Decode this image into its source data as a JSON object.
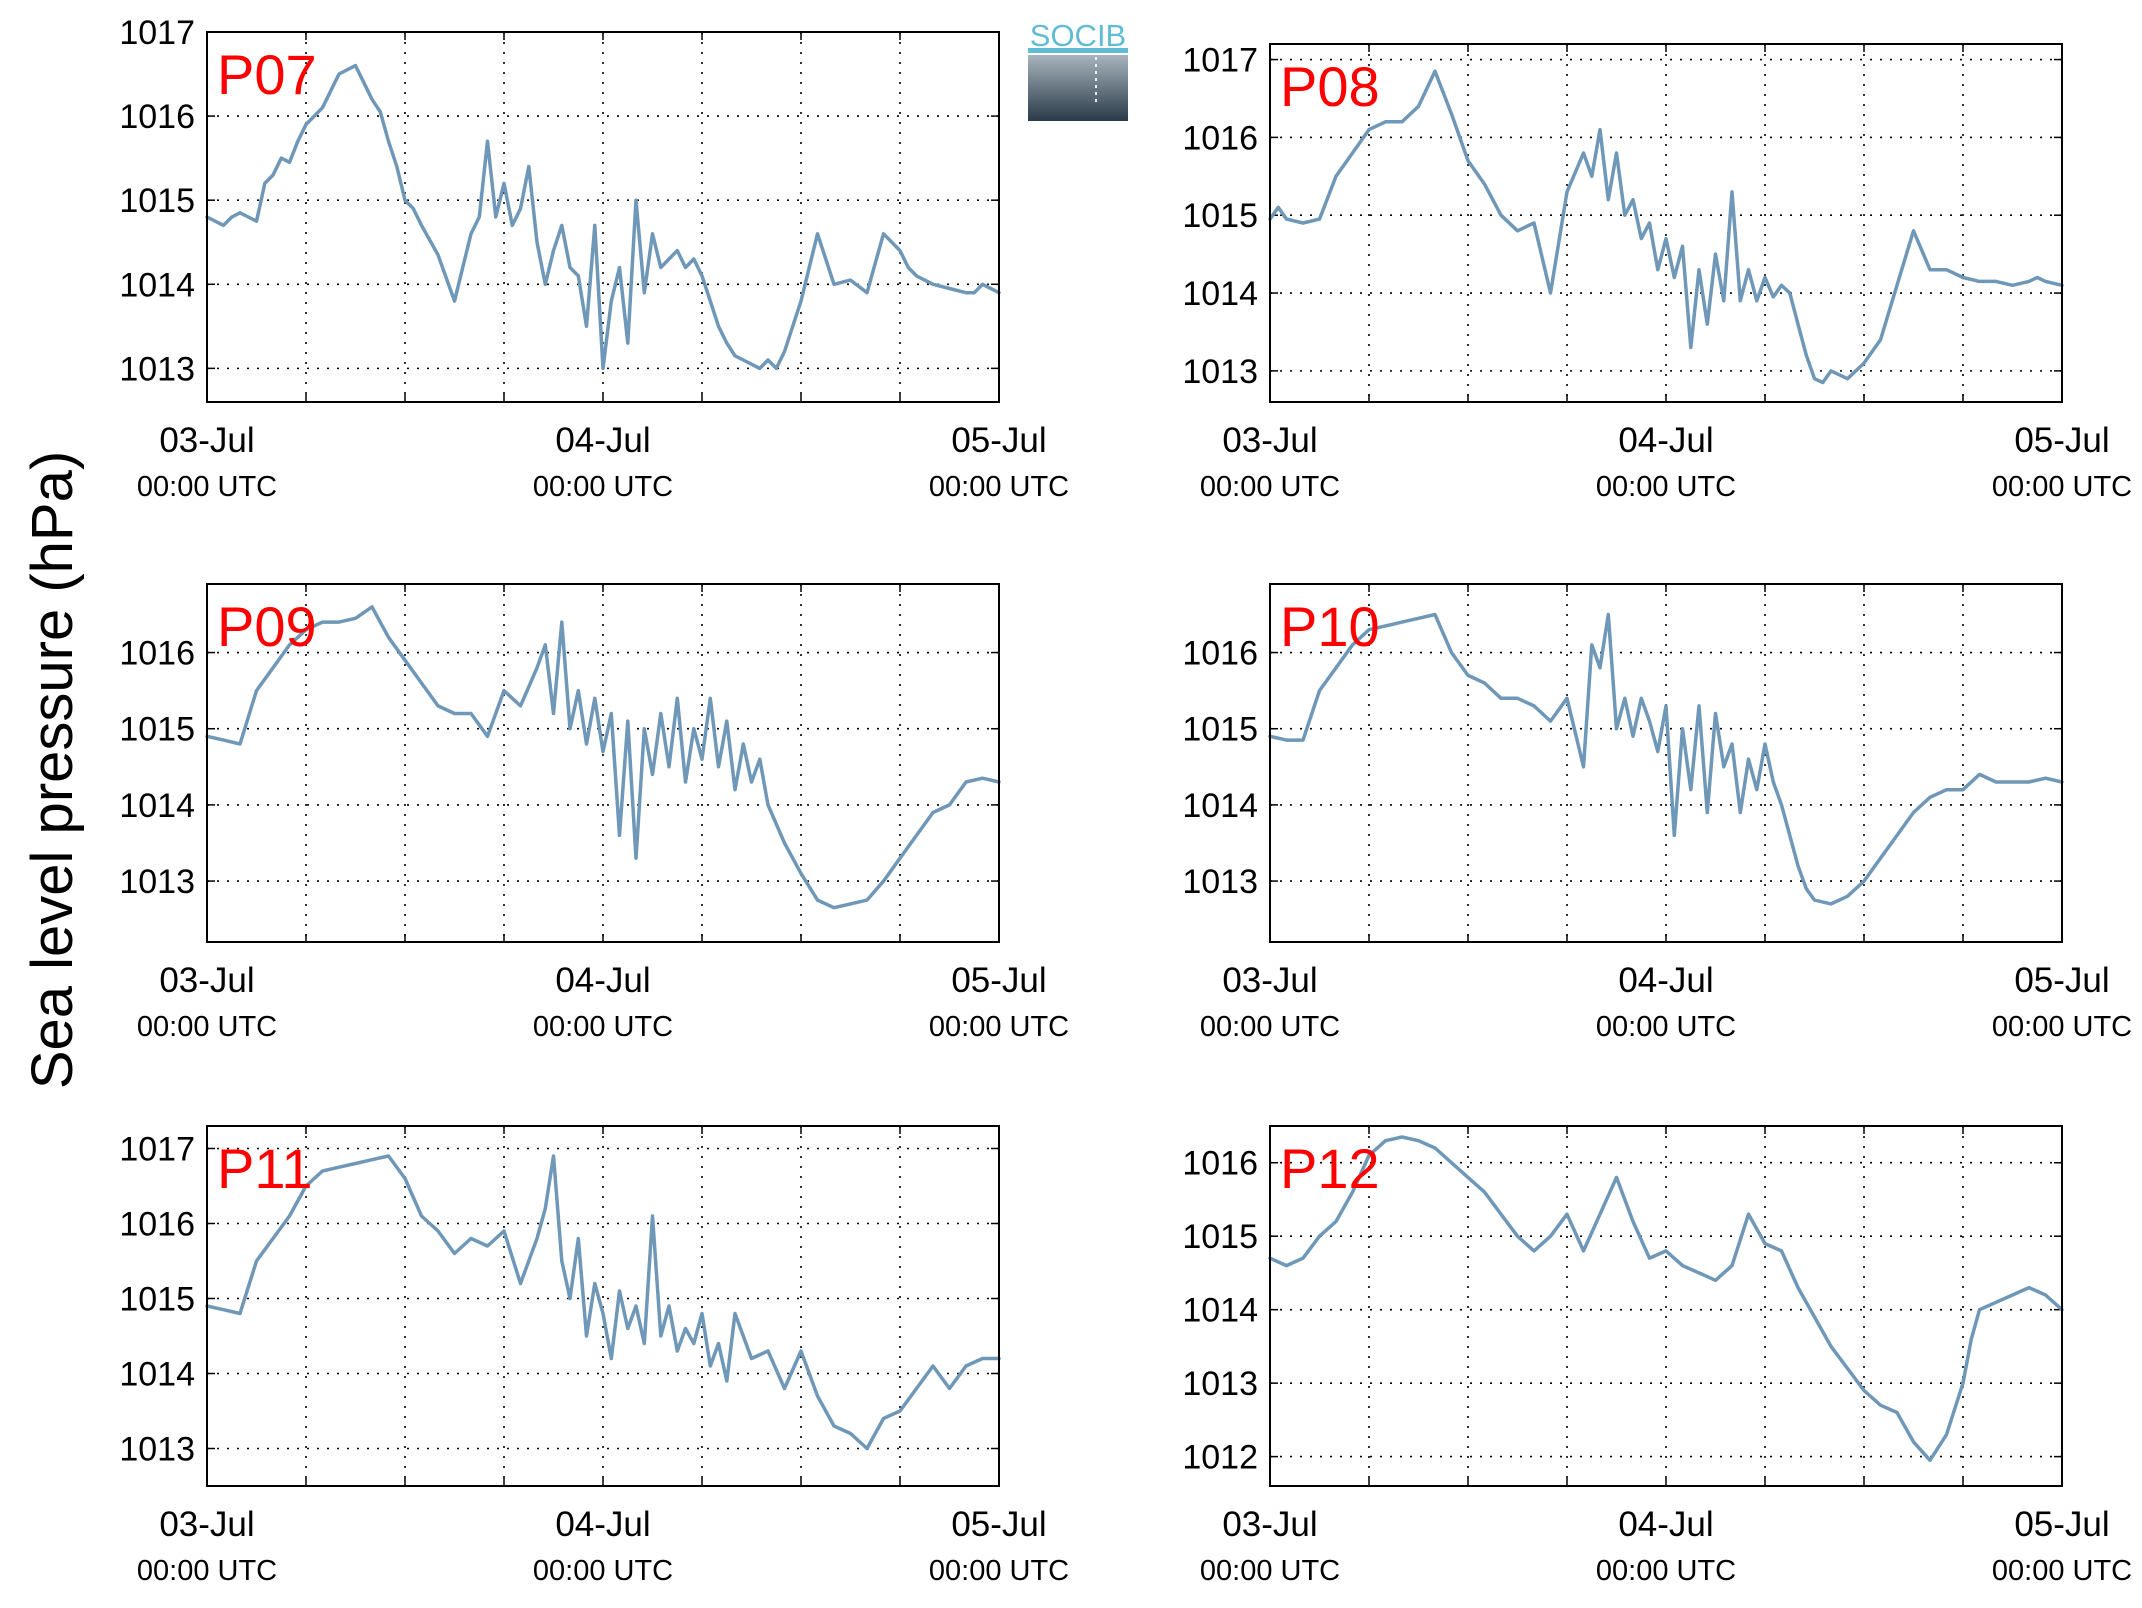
{
  "figure": {
    "ylabel": "Sea level pressure (hPa)",
    "logo_text": "SOCIB",
    "line_color": "#6f97b7",
    "station_label_color": "#ff0000",
    "grid": true,
    "grid_style": "dotted"
  },
  "chart_data": [
    {
      "type": "line",
      "title": "P07",
      "x_ticks": [
        {
          "major": "03-Jul",
          "minor": "00:00 UTC"
        },
        {
          "major": "04-Jul",
          "minor": "00:00 UTC"
        },
        {
          "major": "05-Jul",
          "minor": "00:00 UTC"
        }
      ],
      "xlim_hours": [
        0,
        48
      ],
      "ylim": [
        1012.6,
        1017.0
      ],
      "yticks": [
        1013,
        1014,
        1015,
        1016,
        1017
      ],
      "x_hours": [
        0,
        1,
        1.5,
        2,
        2.5,
        3,
        3.5,
        4,
        4.5,
        5,
        5.5,
        6,
        7,
        8,
        9,
        10,
        10.5,
        11,
        11.5,
        12,
        12.5,
        13,
        14,
        15,
        16,
        16.5,
        17,
        17.5,
        18,
        18.5,
        19,
        19.5,
        20,
        20.5,
        21,
        21.5,
        22,
        22.5,
        23,
        23.5,
        24,
        24.5,
        25,
        25.5,
        26,
        26.5,
        27,
        27.5,
        28,
        28.5,
        29,
        29.5,
        30,
        30.5,
        31,
        31.5,
        32,
        32.5,
        33,
        33.5,
        34,
        34.5,
        35,
        36,
        37,
        38,
        39,
        40,
        41,
        42,
        42.5,
        43,
        44,
        45,
        46,
        46.5,
        47,
        48
      ],
      "values": [
        1014.8,
        1014.7,
        1014.8,
        1014.85,
        1014.8,
        1014.75,
        1015.2,
        1015.3,
        1015.5,
        1015.45,
        1015.7,
        1015.9,
        1016.1,
        1016.5,
        1016.6,
        1016.2,
        1016.05,
        1015.7,
        1015.4,
        1015.0,
        1014.9,
        1014.7,
        1014.35,
        1013.8,
        1014.6,
        1014.8,
        1015.7,
        1014.8,
        1015.2,
        1014.7,
        1014.9,
        1015.4,
        1014.5,
        1014.0,
        1014.4,
        1014.7,
        1014.2,
        1014.1,
        1013.5,
        1014.7,
        1013.0,
        1013.8,
        1014.2,
        1013.3,
        1015.0,
        1013.9,
        1014.6,
        1014.2,
        1014.3,
        1014.4,
        1014.2,
        1014.3,
        1014.1,
        1013.8,
        1013.5,
        1013.3,
        1013.15,
        1013.1,
        1013.05,
        1013.0,
        1013.1,
        1013.0,
        1013.2,
        1013.8,
        1014.6,
        1014.0,
        1014.05,
        1013.9,
        1014.6,
        1014.4,
        1014.2,
        1014.1,
        1014.0,
        1013.95,
        1013.9,
        1013.9,
        1014.0,
        1013.9
      ]
    },
    {
      "type": "line",
      "title": "P08",
      "x_ticks": [
        {
          "major": "03-Jul",
          "minor": "00:00 UTC"
        },
        {
          "major": "04-Jul",
          "minor": "00:00 UTC"
        },
        {
          "major": "05-Jul",
          "minor": "00:00 UTC"
        }
      ],
      "xlim_hours": [
        0,
        48
      ],
      "ylim": [
        1012.6,
        1017.2
      ],
      "yticks": [
        1013,
        1014,
        1015,
        1016,
        1017
      ],
      "x_hours": [
        0,
        0.5,
        1,
        2,
        3,
        4,
        5,
        6,
        7,
        8,
        9,
        10,
        11,
        11.5,
        12,
        13,
        14,
        15,
        16,
        17,
        18,
        19,
        19.5,
        20,
        20.5,
        21,
        21.5,
        22,
        22.5,
        23,
        23.5,
        24,
        24.5,
        25,
        25.5,
        26,
        26.5,
        27,
        27.5,
        28,
        28.5,
        29,
        29.5,
        30,
        30.5,
        31,
        31.5,
        32,
        32.5,
        33,
        33.5,
        34,
        35,
        36,
        37,
        38,
        39,
        40,
        41,
        42,
        43,
        44,
        45,
        46,
        46.5,
        47,
        48
      ],
      "values": [
        1014.95,
        1015.1,
        1014.95,
        1014.9,
        1014.95,
        1015.5,
        1015.8,
        1016.1,
        1016.2,
        1016.2,
        1016.4,
        1016.85,
        1016.3,
        1016.0,
        1015.7,
        1015.4,
        1015.0,
        1014.8,
        1014.9,
        1014.0,
        1015.3,
        1015.8,
        1015.5,
        1016.1,
        1015.2,
        1015.8,
        1015.0,
        1015.2,
        1014.7,
        1014.9,
        1014.3,
        1014.7,
        1014.2,
        1014.6,
        1013.3,
        1014.3,
        1013.6,
        1014.5,
        1013.9,
        1015.3,
        1013.9,
        1014.3,
        1013.9,
        1014.2,
        1013.95,
        1014.1,
        1014.0,
        1013.6,
        1013.2,
        1012.9,
        1012.85,
        1013.0,
        1012.9,
        1013.1,
        1013.4,
        1014.1,
        1014.8,
        1014.3,
        1014.3,
        1014.2,
        1014.15,
        1014.15,
        1014.1,
        1014.15,
        1014.2,
        1014.15,
        1014.1
      ]
    },
    {
      "type": "line",
      "title": "P09",
      "x_ticks": [
        {
          "major": "03-Jul",
          "minor": "00:00 UTC"
        },
        {
          "major": "04-Jul",
          "minor": "00:00 UTC"
        },
        {
          "major": "05-Jul",
          "minor": "00:00 UTC"
        }
      ],
      "xlim_hours": [
        0,
        48
      ],
      "ylim": [
        1012.2,
        1016.9
      ],
      "yticks": [
        1013,
        1014,
        1015,
        1016
      ],
      "x_hours": [
        0,
        1,
        2,
        3,
        4,
        5,
        6,
        7,
        8,
        9,
        10,
        11,
        12,
        13,
        14,
        15,
        16,
        17,
        18,
        19,
        20,
        20.5,
        21,
        21.5,
        22,
        22.5,
        23,
        23.5,
        24,
        24.5,
        25,
        25.5,
        26,
        26.5,
        27,
        27.5,
        28,
        28.5,
        29,
        29.5,
        30,
        30.5,
        31,
        31.5,
        32,
        32.5,
        33,
        33.5,
        34,
        35,
        36,
        37,
        38,
        39,
        40,
        41,
        42,
        43,
        44,
        45,
        46,
        47,
        48
      ],
      "values": [
        1014.9,
        1014.85,
        1014.8,
        1015.5,
        1015.8,
        1016.1,
        1016.3,
        1016.4,
        1016.4,
        1016.45,
        1016.6,
        1016.2,
        1015.9,
        1015.6,
        1015.3,
        1015.2,
        1015.2,
        1014.9,
        1015.5,
        1015.3,
        1015.8,
        1016.1,
        1015.2,
        1016.4,
        1015.0,
        1015.5,
        1014.8,
        1015.4,
        1014.7,
        1015.2,
        1013.6,
        1015.1,
        1013.3,
        1015.0,
        1014.4,
        1015.2,
        1014.5,
        1015.4,
        1014.3,
        1015.0,
        1014.6,
        1015.4,
        1014.5,
        1015.1,
        1014.2,
        1014.8,
        1014.3,
        1014.6,
        1014.0,
        1013.5,
        1013.1,
        1012.75,
        1012.65,
        1012.7,
        1012.75,
        1013.0,
        1013.3,
        1013.6,
        1013.9,
        1014.0,
        1014.3,
        1014.35,
        1014.3
      ]
    },
    {
      "type": "line",
      "title": "P10",
      "x_ticks": [
        {
          "major": "03-Jul",
          "minor": "00:00 UTC"
        },
        {
          "major": "04-Jul",
          "minor": "00:00 UTC"
        },
        {
          "major": "05-Jul",
          "minor": "00:00 UTC"
        }
      ],
      "xlim_hours": [
        0,
        48
      ],
      "ylim": [
        1012.2,
        1016.9
      ],
      "yticks": [
        1013,
        1014,
        1015,
        1016
      ],
      "x_hours": [
        0,
        1,
        2,
        3,
        4,
        5,
        6,
        7,
        8,
        9,
        10,
        11,
        12,
        13,
        14,
        15,
        16,
        17,
        18,
        19,
        19.5,
        20,
        20.5,
        21,
        21.5,
        22,
        22.5,
        23,
        23.5,
        24,
        24.5,
        25,
        25.5,
        26,
        26.5,
        27,
        27.5,
        28,
        28.5,
        29,
        29.5,
        30,
        30.5,
        31,
        31.5,
        32,
        32.5,
        33,
        34,
        35,
        36,
        37,
        38,
        39,
        40,
        41,
        42,
        43,
        44,
        45,
        46,
        47,
        48
      ],
      "values": [
        1014.9,
        1014.85,
        1014.85,
        1015.5,
        1015.8,
        1016.1,
        1016.3,
        1016.35,
        1016.4,
        1016.45,
        1016.5,
        1016.0,
        1015.7,
        1015.6,
        1015.4,
        1015.4,
        1015.3,
        1015.1,
        1015.4,
        1014.5,
        1016.1,
        1015.8,
        1016.5,
        1015.0,
        1015.4,
        1014.9,
        1015.4,
        1015.1,
        1014.7,
        1015.3,
        1013.6,
        1015.0,
        1014.2,
        1015.3,
        1013.9,
        1015.2,
        1014.5,
        1014.8,
        1013.9,
        1014.6,
        1014.2,
        1014.8,
        1014.3,
        1014.0,
        1013.6,
        1013.2,
        1012.9,
        1012.75,
        1012.7,
        1012.8,
        1013.0,
        1013.3,
        1013.6,
        1013.9,
        1014.1,
        1014.2,
        1014.2,
        1014.4,
        1014.3,
        1014.3,
        1014.3,
        1014.35,
        1014.3
      ]
    },
    {
      "type": "line",
      "title": "P11",
      "x_ticks": [
        {
          "major": "03-Jul",
          "minor": "00:00 UTC"
        },
        {
          "major": "04-Jul",
          "minor": "00:00 UTC"
        },
        {
          "major": "05-Jul",
          "minor": "00:00 UTC"
        }
      ],
      "xlim_hours": [
        0,
        48
      ],
      "ylim": [
        1012.5,
        1017.3
      ],
      "yticks": [
        1013,
        1014,
        1015,
        1016,
        1017
      ],
      "x_hours": [
        0,
        1,
        2,
        3,
        4,
        5,
        6,
        7,
        8,
        9,
        10,
        11,
        12,
        13,
        14,
        15,
        16,
        17,
        18,
        19,
        20,
        20.5,
        21,
        21.5,
        22,
        22.5,
        23,
        23.5,
        24,
        24.5,
        25,
        25.5,
        26,
        26.5,
        27,
        27.5,
        28,
        28.5,
        29,
        29.5,
        30,
        30.5,
        31,
        31.5,
        32,
        33,
        34,
        35,
        36,
        37,
        38,
        39,
        40,
        41,
        42,
        43,
        44,
        45,
        46,
        47,
        48
      ],
      "values": [
        1014.9,
        1014.85,
        1014.8,
        1015.5,
        1015.8,
        1016.1,
        1016.5,
        1016.7,
        1016.75,
        1016.8,
        1016.85,
        1016.9,
        1016.6,
        1016.1,
        1015.9,
        1015.6,
        1015.8,
        1015.7,
        1015.9,
        1015.2,
        1015.8,
        1016.2,
        1016.9,
        1015.5,
        1015.0,
        1015.8,
        1014.5,
        1015.2,
        1014.8,
        1014.2,
        1015.1,
        1014.6,
        1014.9,
        1014.4,
        1016.1,
        1014.5,
        1014.9,
        1014.3,
        1014.6,
        1014.4,
        1014.8,
        1014.1,
        1014.4,
        1013.9,
        1014.8,
        1014.2,
        1014.3,
        1013.8,
        1014.3,
        1013.7,
        1013.3,
        1013.2,
        1013.0,
        1013.4,
        1013.5,
        1013.8,
        1014.1,
        1013.8,
        1014.1,
        1014.2,
        1014.2
      ]
    },
    {
      "type": "line",
      "title": "P12",
      "x_ticks": [
        {
          "major": "03-Jul",
          "minor": "00:00 UTC"
        },
        {
          "major": "04-Jul",
          "minor": "00:00 UTC"
        },
        {
          "major": "05-Jul",
          "minor": "00:00 UTC"
        }
      ],
      "xlim_hours": [
        0,
        48
      ],
      "ylim": [
        1011.6,
        1016.5
      ],
      "yticks": [
        1012,
        1013,
        1014,
        1015,
        1016
      ],
      "x_hours": [
        0,
        1,
        2,
        3,
        4,
        5,
        6,
        7,
        8,
        9,
        10,
        11,
        12,
        13,
        14,
        15,
        16,
        17,
        18,
        19,
        20,
        21,
        22,
        23,
        24,
        25,
        26,
        27,
        28,
        29,
        30,
        31,
        32,
        33,
        34,
        35,
        36,
        37,
        38,
        39,
        40,
        41,
        42,
        42.5,
        43,
        44,
        45,
        46,
        47,
        48
      ],
      "values": [
        1014.7,
        1014.6,
        1014.7,
        1015.0,
        1015.2,
        1015.6,
        1016.1,
        1016.3,
        1016.35,
        1016.3,
        1016.2,
        1016.0,
        1015.8,
        1015.6,
        1015.3,
        1015.0,
        1014.8,
        1015.0,
        1015.3,
        1014.8,
        1015.3,
        1015.8,
        1015.2,
        1014.7,
        1014.8,
        1014.6,
        1014.5,
        1014.4,
        1014.6,
        1015.3,
        1014.9,
        1014.8,
        1014.3,
        1013.9,
        1013.5,
        1013.2,
        1012.9,
        1012.7,
        1012.6,
        1012.2,
        1011.95,
        1012.3,
        1013.0,
        1013.6,
        1014.0,
        1014.1,
        1014.2,
        1014.3,
        1014.2,
        1014.0
      ]
    }
  ]
}
